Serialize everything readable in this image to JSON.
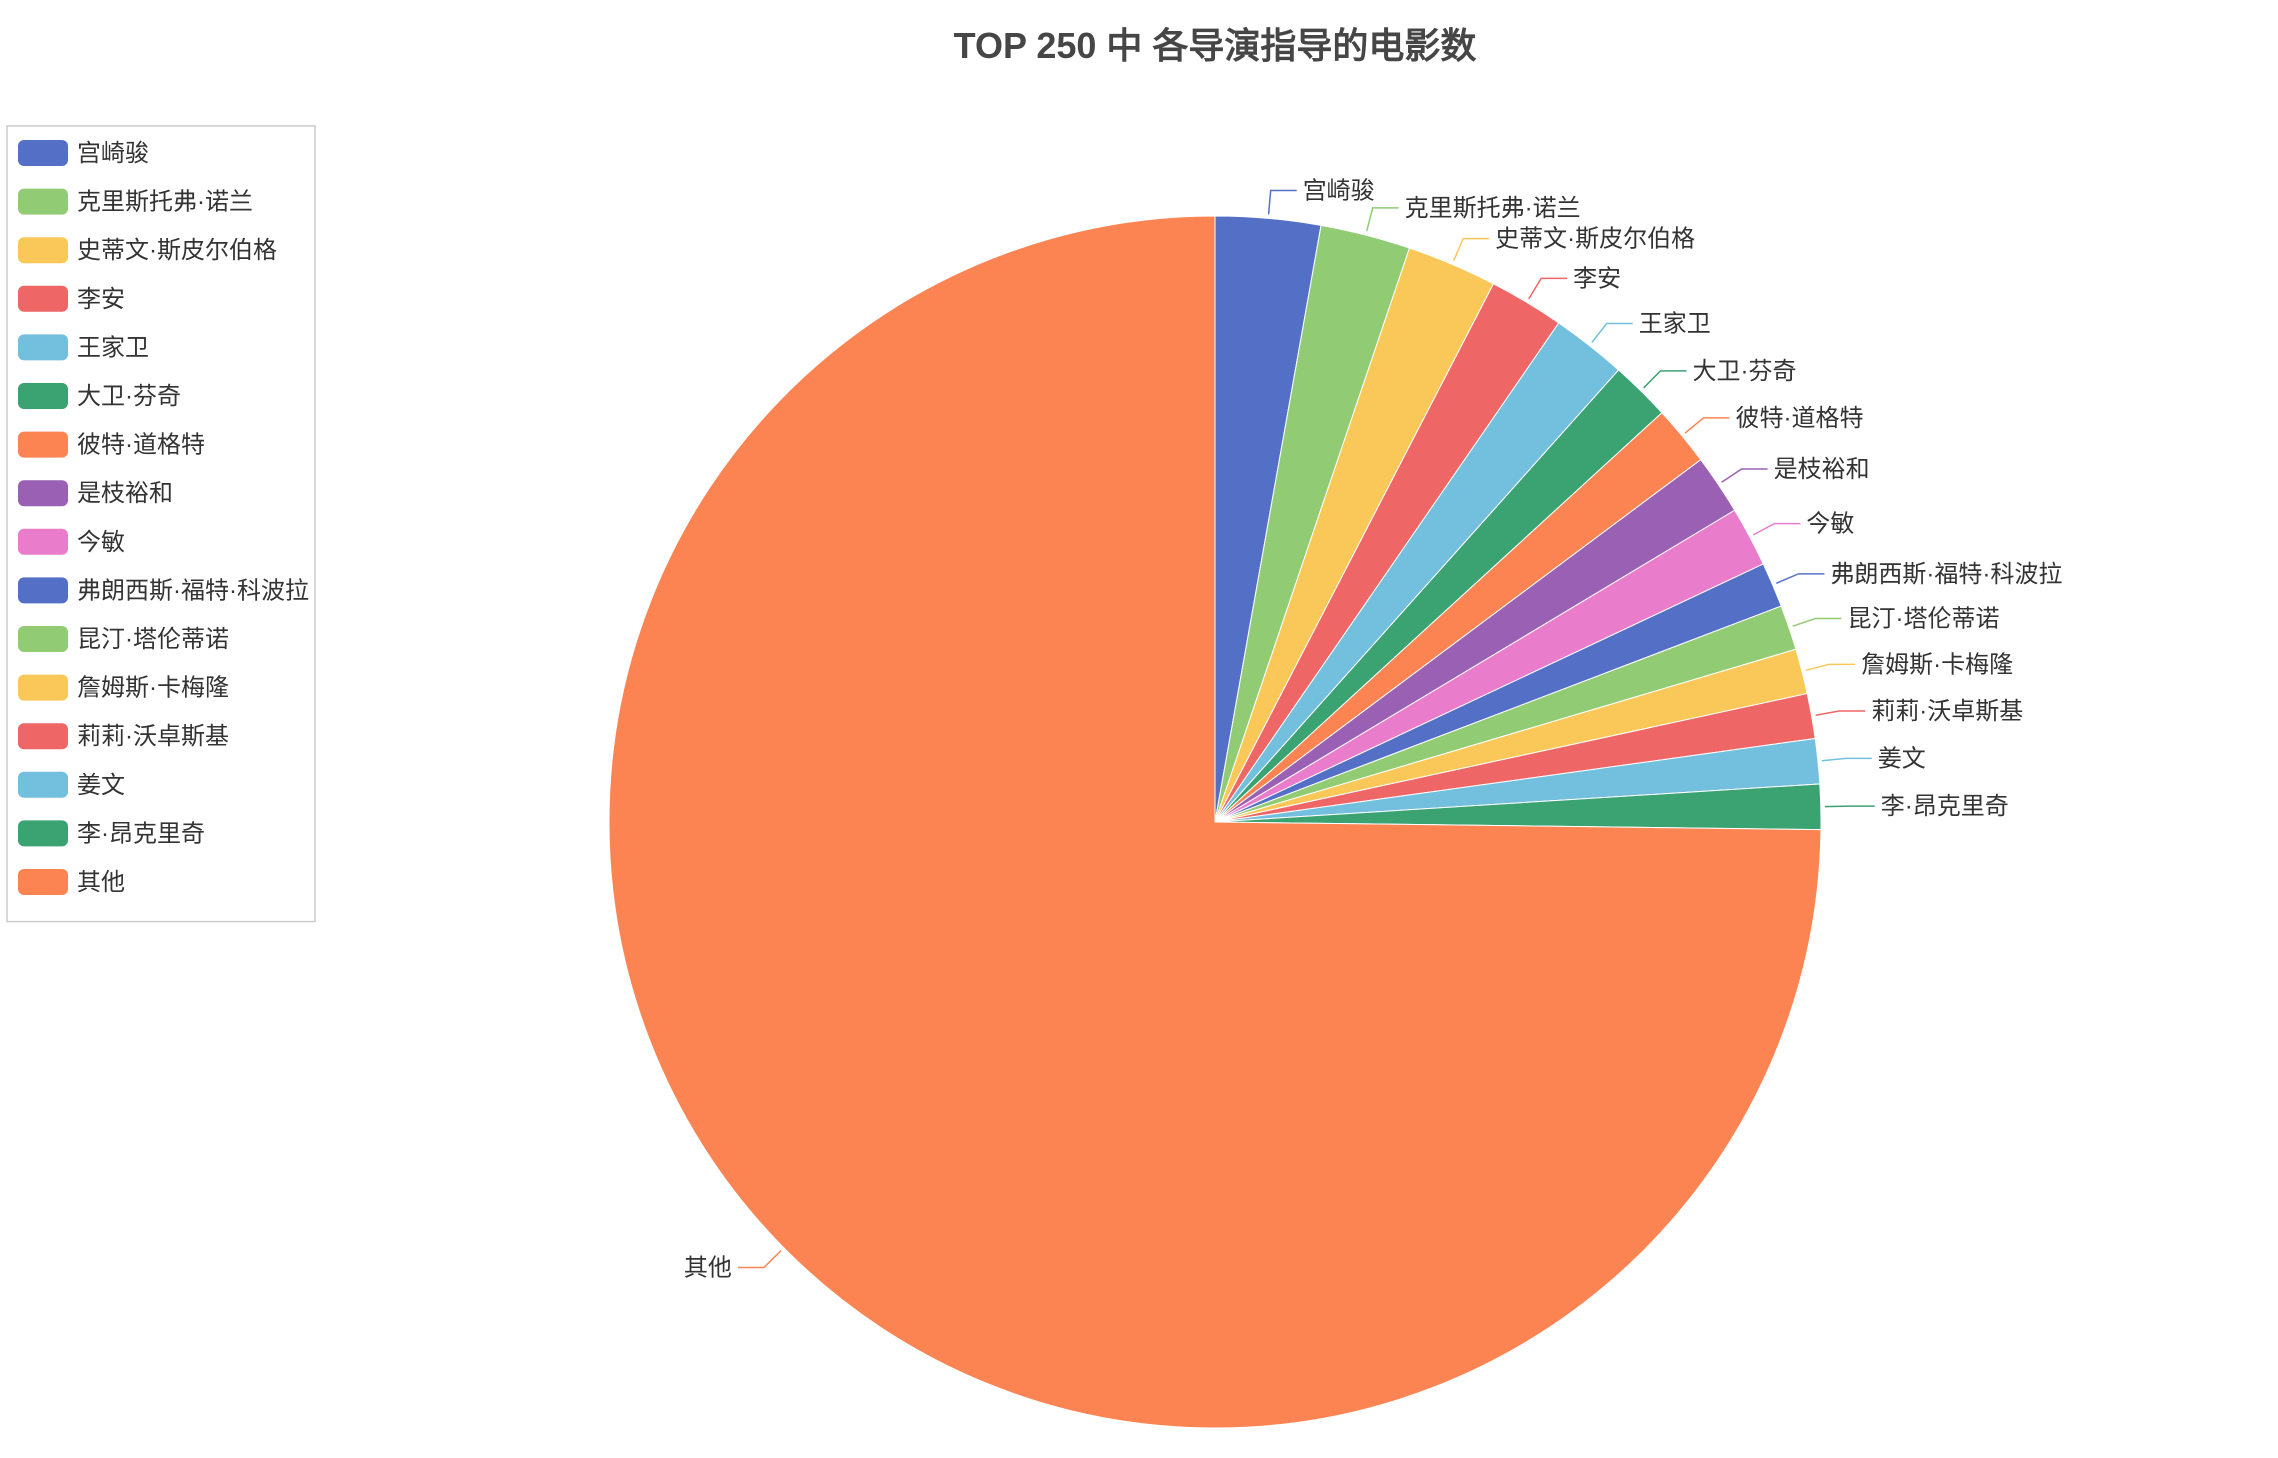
{
  "chart_data": {
    "type": "pie",
    "title": "TOP 250 中 各导演指导的电影数",
    "legend_position": "top-left",
    "slices": [
      {
        "label": "宫崎骏",
        "value": 7,
        "color": "#5470c6"
      },
      {
        "label": "克里斯托弗·诺兰",
        "value": 6,
        "color": "#91cc75"
      },
      {
        "label": "史蒂文·斯皮尔伯格",
        "value": 6,
        "color": "#fac858"
      },
      {
        "label": "李安",
        "value": 5,
        "color": "#ee6666"
      },
      {
        "label": "王家卫",
        "value": 5,
        "color": "#73c0de"
      },
      {
        "label": "大卫·芬奇",
        "value": 4,
        "color": "#3ba272"
      },
      {
        "label": "彼特·道格特",
        "value": 4,
        "color": "#fc8452"
      },
      {
        "label": "是枝裕和",
        "value": 4,
        "color": "#9a60b4"
      },
      {
        "label": "今敏",
        "value": 4,
        "color": "#ea7ccc"
      },
      {
        "label": "弗朗西斯·福特·科波拉",
        "value": 3,
        "color": "#5470c6"
      },
      {
        "label": "昆汀·塔伦蒂诺",
        "value": 3,
        "color": "#91cc75"
      },
      {
        "label": "詹姆斯·卡梅隆",
        "value": 3,
        "color": "#fac858"
      },
      {
        "label": "莉莉·沃卓斯基",
        "value": 3,
        "color": "#ee6666"
      },
      {
        "label": "姜文",
        "value": 3,
        "color": "#73c0de"
      },
      {
        "label": "李·昂克里奇",
        "value": 3,
        "color": "#3ba272"
      },
      {
        "label": "其他",
        "value": 187,
        "color": "#fc8452"
      }
    ]
  }
}
